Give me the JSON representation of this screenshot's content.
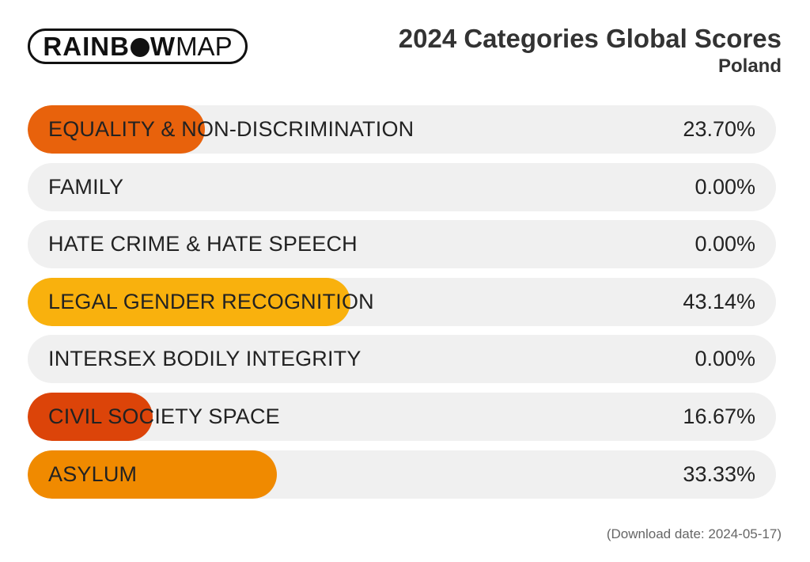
{
  "logo": {
    "part1": "RAINB",
    "part2": "W",
    "part3": "MAP"
  },
  "footer": "(Download date: 2024-05-17)",
  "chart_data": {
    "type": "bar",
    "orientation": "horizontal",
    "title": "2024 Categories Global Scores",
    "subtitle": "Poland",
    "xlim": [
      0,
      100
    ],
    "categories": [
      "EQUALITY & NON-DISCRIMINATION",
      "FAMILY",
      "HATE CRIME & HATE SPEECH",
      "LEGAL GENDER RECOGNITION",
      "INTERSEX BODILY INTEGRITY",
      "CIVIL SOCIETY SPACE",
      "ASYLUM"
    ],
    "values": [
      23.7,
      0.0,
      0.0,
      43.14,
      0.0,
      16.67,
      33.33
    ],
    "value_labels": [
      "23.70%",
      "0.00%",
      "0.00%",
      "43.14%",
      "0.00%",
      "16.67%",
      "33.33%"
    ],
    "colors": [
      "#e8620c",
      "#f0f0f0",
      "#f0f0f0",
      "#f9b10d",
      "#f0f0f0",
      "#dc4409",
      "#f08a00"
    ]
  }
}
